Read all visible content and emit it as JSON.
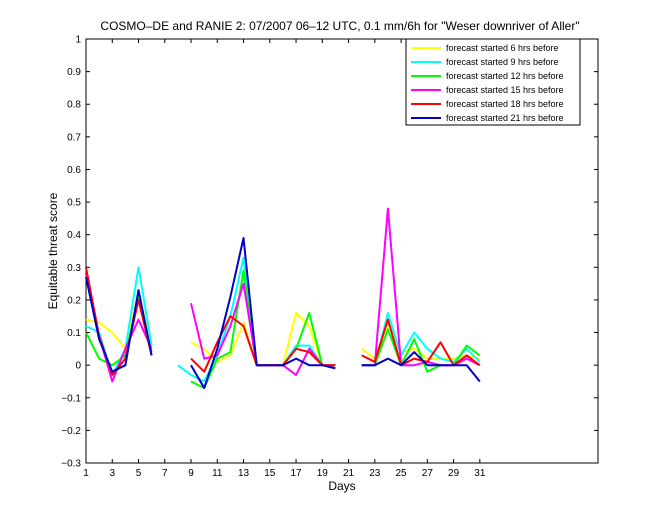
{
  "chart_data": {
    "type": "line",
    "title": "COSMO–DE and RANIE 2: 07/2007 06–12 UTC, 0.1 mm/6h for \"Weser downriver of Aller\"",
    "xlabel": "Days",
    "ylabel": "Equitable threat score",
    "xlim": [
      1,
      40
    ],
    "ylim": [
      -0.3,
      1
    ],
    "x_ticks": [
      1,
      3,
      5,
      7,
      9,
      11,
      13,
      15,
      17,
      19,
      21,
      23,
      25,
      27,
      29,
      31
    ],
    "y_ticks": [
      -0.3,
      -0.2,
      -0.1,
      0,
      0.1,
      0.2,
      0.3,
      0.4,
      0.5,
      0.6,
      0.7,
      0.8,
      0.9,
      1
    ],
    "y_tick_labels": [
      "−0.3",
      "−0.2",
      "−0.1",
      "0",
      "0.1",
      "0.2",
      "0.3",
      "0.4",
      "0.5",
      "0.6",
      "0.7",
      "0.8",
      "0.9",
      "1"
    ],
    "grid": false,
    "legend_position": "top-right",
    "x": [
      1,
      2,
      3,
      4,
      5,
      6,
      7,
      8,
      9,
      10,
      11,
      12,
      13,
      14,
      15,
      16,
      17,
      18,
      19,
      20,
      21,
      22,
      23,
      24,
      25,
      26,
      27,
      28,
      29,
      30,
      31
    ],
    "series": [
      {
        "name": "forecast started 6 hrs before",
        "color": "#ffff00",
        "values": [
          0.14,
          0.13,
          0.1,
          0.05,
          0.22,
          0.07,
          null,
          null,
          0.07,
          0.05,
          0.01,
          0.03,
          0.13,
          0.0,
          0.0,
          0.0,
          0.16,
          0.12,
          0.0,
          0.0,
          null,
          0.05,
          0.02,
          0.13,
          0.04,
          0.05,
          0.02,
          0.02,
          0.02,
          0.03,
          0.02
        ]
      },
      {
        "name": "forecast started 9 hrs before",
        "color": "#00ffff",
        "values": [
          0.12,
          0.1,
          -0.03,
          0.05,
          0.3,
          0.06,
          null,
          0.0,
          -0.03,
          -0.05,
          0.03,
          0.15,
          0.33,
          0.0,
          0.0,
          0.0,
          0.06,
          0.06,
          0.0,
          0.0,
          null,
          0.0,
          0.0,
          0.16,
          0.03,
          0.1,
          0.05,
          0.02,
          0.01,
          0.05,
          0.01
        ]
      },
      {
        "name": "forecast started 12 hrs before",
        "color": "#00ff00",
        "values": [
          0.1,
          0.02,
          0.0,
          0.03,
          0.21,
          0.04,
          null,
          null,
          -0.05,
          -0.07,
          0.02,
          0.04,
          0.29,
          0.0,
          0.0,
          0.0,
          0.05,
          0.16,
          0.0,
          0.0,
          null,
          0.0,
          0.0,
          0.11,
          0.0,
          0.08,
          -0.02,
          0.0,
          0.0,
          0.06,
          0.03
        ]
      },
      {
        "name": "forecast started 15 hrs before",
        "color": "#ff00ff",
        "values": [
          0.28,
          0.09,
          -0.05,
          0.05,
          0.14,
          0.05,
          null,
          null,
          0.19,
          0.02,
          0.03,
          0.12,
          0.25,
          0.0,
          0.0,
          0.0,
          -0.03,
          0.05,
          0.0,
          0.0,
          null,
          0.0,
          0.0,
          0.48,
          0.0,
          0.0,
          0.01,
          0.0,
          0.0,
          0.02,
          0.0
        ]
      },
      {
        "name": "forecast started 18 hrs before",
        "color": "#ff0000",
        "values": [
          0.3,
          0.09,
          -0.03,
          0.02,
          0.2,
          0.03,
          null,
          null,
          0.02,
          -0.02,
          0.07,
          0.15,
          0.12,
          0.0,
          0.0,
          0.0,
          0.05,
          0.04,
          0.0,
          0.0,
          null,
          0.03,
          0.01,
          0.14,
          0.0,
          0.02,
          0.01,
          0.07,
          0.0,
          0.03,
          0.0
        ]
      },
      {
        "name": "forecast started 21 hrs before",
        "color": "#0000cc",
        "values": [
          0.27,
          0.08,
          -0.02,
          0.0,
          0.23,
          0.03,
          null,
          null,
          0.0,
          -0.07,
          0.05,
          0.21,
          0.39,
          0.0,
          0.0,
          0.0,
          0.02,
          0.0,
          0.0,
          -0.01,
          null,
          0.0,
          0.0,
          0.02,
          0.0,
          0.04,
          0.0,
          0.0,
          0.0,
          0.0,
          -0.05
        ]
      }
    ]
  }
}
